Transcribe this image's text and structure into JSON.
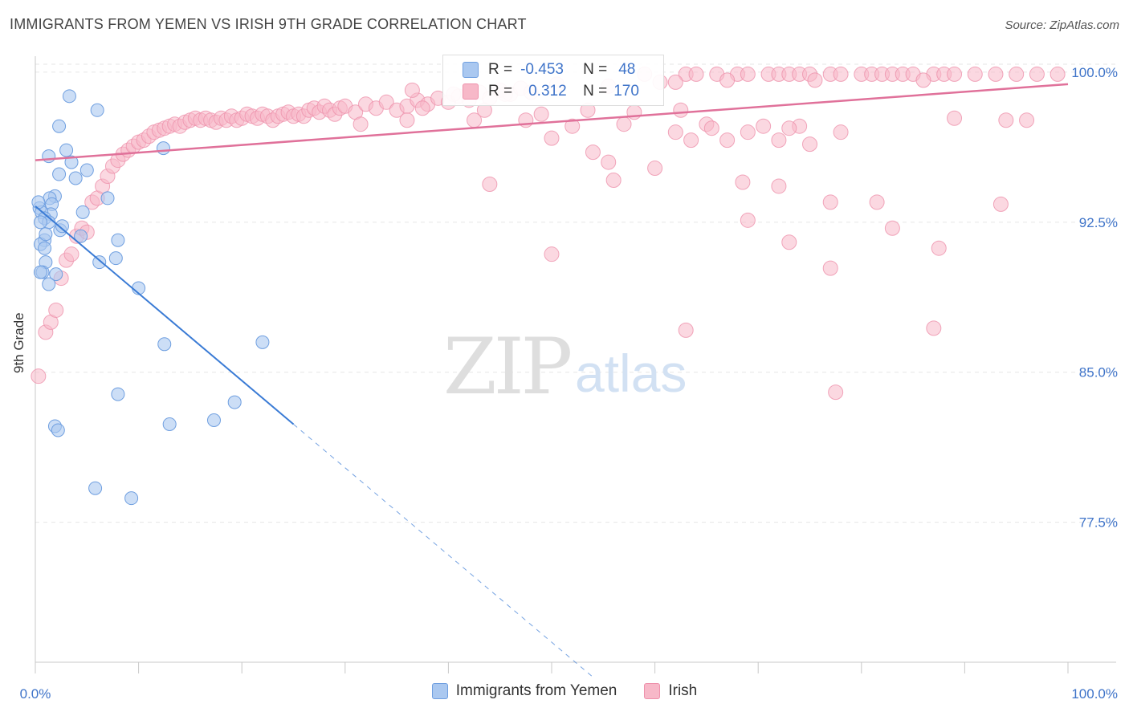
{
  "title": "IMMIGRANTS FROM YEMEN VS IRISH 9TH GRADE CORRELATION CHART",
  "source": "Source: ZipAtlas.com",
  "watermark": {
    "zip": "ZIP",
    "atlas": "atlas"
  },
  "stats": {
    "r_label": "R =",
    "n_label": "N =",
    "series1": {
      "r": "-0.453",
      "n": "48"
    },
    "series2": {
      "r": "0.312",
      "n": "170"
    }
  },
  "colors": {
    "blue_fill": "#aac8f0",
    "blue_stroke": "#6f9fe0",
    "blue_line": "#3a7bd5",
    "pink_fill": "#f7b8c8",
    "pink_stroke": "#ee91ab",
    "pink_line": "#e0719a",
    "tick_label": "#3f74c9"
  },
  "chart_data": {
    "type": "scatter",
    "title": "IMMIGRANTS FROM YEMEN VS IRISH 9TH GRADE CORRELATION CHART",
    "xlabel": "",
    "ylabel": "9th Grade",
    "xlim": [
      0,
      100
    ],
    "ylim": [
      70.5,
      100.8
    ],
    "x_tick_labels": [
      "0.0%",
      "100.0%"
    ],
    "y_ticks": [
      100.0,
      92.5,
      85.0,
      77.5
    ],
    "y_tick_labels": [
      "100.0%",
      "92.5%",
      "85.0%",
      "77.5%"
    ],
    "grid": true,
    "legend_position": "bottom",
    "series": [
      {
        "name": "Immigrants from Yemen",
        "r": -0.453,
        "n": 48,
        "trend": {
          "x0": 0,
          "y0": 93.3,
          "x1": 25,
          "y1": 82.4,
          "dashed_to_x": 54
        },
        "points": [
          [
            3.3,
            98.8
          ],
          [
            6.0,
            98.1
          ],
          [
            2.3,
            97.3
          ],
          [
            3.0,
            96.1
          ],
          [
            1.3,
            95.8
          ],
          [
            3.5,
            95.5
          ],
          [
            12.4,
            96.2
          ],
          [
            5.0,
            95.1
          ],
          [
            2.3,
            94.9
          ],
          [
            3.9,
            94.7
          ],
          [
            7.0,
            93.7
          ],
          [
            1.9,
            93.8
          ],
          [
            1.4,
            93.7
          ],
          [
            1.6,
            93.4
          ],
          [
            0.4,
            93.2
          ],
          [
            1.5,
            92.9
          ],
          [
            0.6,
            93.0
          ],
          [
            0.9,
            92.7
          ],
          [
            1.3,
            92.5
          ],
          [
            2.4,
            92.1
          ],
          [
            0.5,
            92.5
          ],
          [
            0.9,
            91.6
          ],
          [
            4.4,
            91.8
          ],
          [
            8.0,
            91.6
          ],
          [
            0.5,
            91.4
          ],
          [
            0.9,
            91.2
          ],
          [
            7.8,
            90.7
          ],
          [
            6.2,
            90.5
          ],
          [
            1.0,
            90.5
          ],
          [
            0.7,
            90.0
          ],
          [
            0.5,
            90.0
          ],
          [
            2.0,
            89.9
          ],
          [
            1.3,
            89.4
          ],
          [
            10.0,
            89.2
          ],
          [
            12.5,
            86.4
          ],
          [
            22.0,
            86.5
          ],
          [
            8.0,
            83.9
          ],
          [
            19.3,
            83.5
          ],
          [
            1.9,
            82.3
          ],
          [
            2.2,
            82.1
          ],
          [
            13.0,
            82.4
          ],
          [
            17.3,
            82.6
          ],
          [
            5.8,
            79.2
          ],
          [
            9.3,
            78.7
          ],
          [
            0.3,
            93.5
          ],
          [
            1.0,
            91.9
          ],
          [
            4.6,
            93.0
          ],
          [
            2.6,
            92.3
          ]
        ]
      },
      {
        "name": "Irish",
        "r": 0.312,
        "n": 170,
        "trend": {
          "x0": 0,
          "y0": 95.6,
          "x1": 100,
          "y1": 99.4
        },
        "points": [
          [
            0.3,
            84.8
          ],
          [
            1.0,
            87.0
          ],
          [
            1.5,
            87.5
          ],
          [
            2.0,
            88.1
          ],
          [
            2.5,
            89.7
          ],
          [
            3.0,
            90.6
          ],
          [
            3.5,
            90.9
          ],
          [
            4.0,
            91.8
          ],
          [
            4.5,
            92.2
          ],
          [
            5.0,
            92.0
          ],
          [
            5.5,
            93.5
          ],
          [
            6.0,
            93.7
          ],
          [
            6.5,
            94.3
          ],
          [
            7.0,
            94.8
          ],
          [
            7.5,
            95.3
          ],
          [
            8.0,
            95.6
          ],
          [
            8.5,
            95.9
          ],
          [
            9.0,
            96.1
          ],
          [
            9.5,
            96.3
          ],
          [
            10.0,
            96.5
          ],
          [
            10.5,
            96.6
          ],
          [
            11.0,
            96.8
          ],
          [
            11.5,
            97.0
          ],
          [
            12.0,
            97.1
          ],
          [
            12.5,
            97.2
          ],
          [
            13.0,
            97.3
          ],
          [
            13.5,
            97.4
          ],
          [
            14.0,
            97.3
          ],
          [
            14.5,
            97.5
          ],
          [
            15.0,
            97.6
          ],
          [
            15.5,
            97.7
          ],
          [
            16.0,
            97.6
          ],
          [
            16.5,
            97.7
          ],
          [
            17.0,
            97.6
          ],
          [
            17.5,
            97.5
          ],
          [
            18.0,
            97.7
          ],
          [
            18.5,
            97.6
          ],
          [
            19.0,
            97.8
          ],
          [
            19.5,
            97.6
          ],
          [
            20.0,
            97.7
          ],
          [
            20.5,
            97.9
          ],
          [
            21.0,
            97.8
          ],
          [
            21.5,
            97.7
          ],
          [
            22.0,
            97.9
          ],
          [
            22.5,
            97.8
          ],
          [
            23.0,
            97.6
          ],
          [
            23.5,
            97.8
          ],
          [
            24.0,
            97.9
          ],
          [
            24.5,
            98.0
          ],
          [
            25.0,
            97.8
          ],
          [
            25.5,
            97.9
          ],
          [
            26.0,
            97.8
          ],
          [
            26.5,
            98.1
          ],
          [
            27.0,
            98.2
          ],
          [
            27.5,
            98.0
          ],
          [
            28.0,
            98.3
          ],
          [
            28.5,
            98.1
          ],
          [
            29.0,
            97.9
          ],
          [
            29.5,
            98.2
          ],
          [
            30.0,
            98.3
          ],
          [
            31.0,
            98.0
          ],
          [
            32.0,
            98.4
          ],
          [
            33.0,
            98.2
          ],
          [
            34.0,
            98.5
          ],
          [
            35.0,
            98.1
          ],
          [
            36.0,
            98.3
          ],
          [
            37.0,
            98.6
          ],
          [
            38.0,
            98.4
          ],
          [
            39.0,
            98.7
          ],
          [
            40.0,
            98.5
          ],
          [
            41.0,
            98.8
          ],
          [
            42.0,
            98.6
          ],
          [
            43.0,
            99.0
          ],
          [
            44.0,
            98.7
          ],
          [
            45.0,
            99.1
          ],
          [
            46.0,
            98.9
          ],
          [
            47.0,
            99.2
          ],
          [
            48.0,
            99.0
          ],
          [
            36.5,
            99.1
          ],
          [
            40.5,
            98.9
          ],
          [
            45.5,
            98.9
          ],
          [
            50.5,
            99.4
          ],
          [
            55.5,
            99.3
          ],
          [
            60.5,
            99.5
          ],
          [
            59.0,
            99.9
          ],
          [
            63.0,
            99.9
          ],
          [
            64.0,
            99.9
          ],
          [
            66.0,
            99.9
          ],
          [
            68.0,
            99.9
          ],
          [
            69.0,
            99.9
          ],
          [
            71.0,
            99.9
          ],
          [
            72.0,
            99.9
          ],
          [
            73.0,
            99.9
          ],
          [
            74.0,
            99.9
          ],
          [
            75.0,
            99.9
          ],
          [
            77.0,
            99.9
          ],
          [
            78.0,
            99.9
          ],
          [
            80.0,
            99.9
          ],
          [
            81.0,
            99.9
          ],
          [
            82.0,
            99.9
          ],
          [
            83.0,
            99.9
          ],
          [
            84.0,
            99.9
          ],
          [
            85.0,
            99.9
          ],
          [
            87.0,
            99.9
          ],
          [
            88.0,
            99.9
          ],
          [
            89.0,
            99.9
          ],
          [
            91.0,
            99.9
          ],
          [
            93.0,
            99.9
          ],
          [
            95.0,
            99.9
          ],
          [
            97.0,
            99.9
          ],
          [
            99.0,
            99.9
          ],
          [
            62.0,
            99.5
          ],
          [
            67.0,
            99.6
          ],
          [
            75.5,
            99.6
          ],
          [
            86.0,
            99.6
          ],
          [
            31.5,
            97.4
          ],
          [
            36.0,
            97.6
          ],
          [
            42.5,
            97.6
          ],
          [
            47.5,
            97.6
          ],
          [
            52.0,
            97.3
          ],
          [
            57.0,
            97.4
          ],
          [
            65.0,
            97.4
          ],
          [
            70.5,
            97.3
          ],
          [
            74.0,
            97.3
          ],
          [
            89.0,
            97.7
          ],
          [
            94.0,
            97.6
          ],
          [
            37.5,
            98.2
          ],
          [
            43.5,
            98.1
          ],
          [
            49.0,
            97.9
          ],
          [
            53.5,
            98.1
          ],
          [
            58.0,
            98.0
          ],
          [
            62.5,
            98.1
          ],
          [
            63.5,
            96.6
          ],
          [
            67.0,
            96.6
          ],
          [
            72.0,
            96.6
          ],
          [
            75.0,
            96.4
          ],
          [
            50.0,
            96.7
          ],
          [
            54.0,
            96.0
          ],
          [
            62.0,
            97.0
          ],
          [
            65.5,
            97.2
          ],
          [
            69.0,
            97.0
          ],
          [
            73.0,
            97.2
          ],
          [
            78.0,
            97.0
          ],
          [
            55.5,
            95.5
          ],
          [
            60.0,
            95.2
          ],
          [
            56.0,
            94.6
          ],
          [
            44.0,
            94.4
          ],
          [
            68.5,
            94.5
          ],
          [
            72.0,
            94.3
          ],
          [
            77.0,
            93.5
          ],
          [
            81.5,
            93.5
          ],
          [
            83.0,
            92.2
          ],
          [
            93.5,
            93.4
          ],
          [
            69.0,
            92.6
          ],
          [
            73.0,
            91.5
          ],
          [
            77.0,
            90.2
          ],
          [
            87.5,
            91.2
          ],
          [
            50.0,
            90.9
          ],
          [
            63.0,
            87.1
          ],
          [
            87.0,
            87.2
          ],
          [
            77.5,
            84.0
          ],
          [
            96.0,
            97.6
          ]
        ]
      }
    ]
  },
  "legend": [
    "Immigrants from Yemen",
    "Irish"
  ]
}
